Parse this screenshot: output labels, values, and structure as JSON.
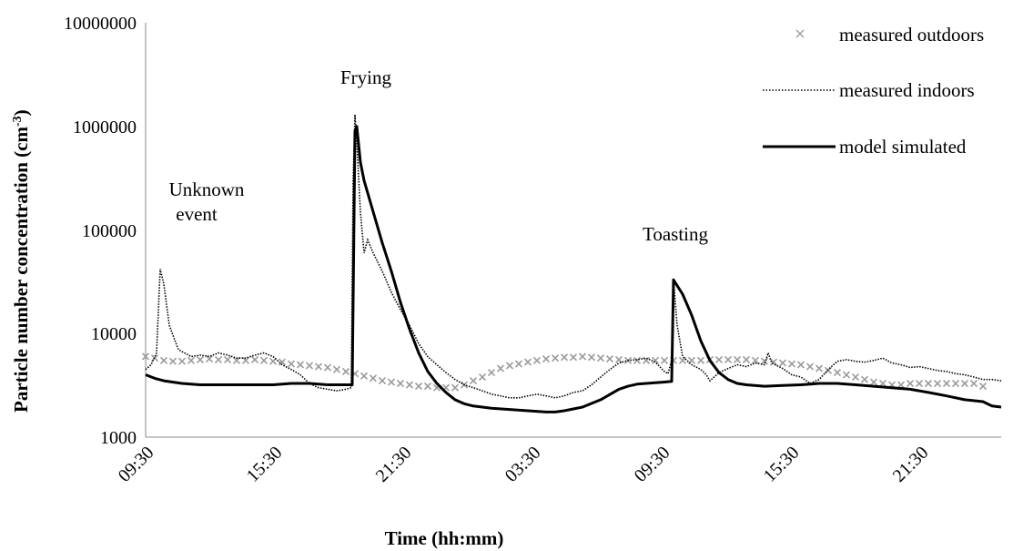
{
  "chart_data": {
    "type": "line",
    "xlabel": "Time (hh:mm)",
    "ylabel_main": "Particle number concentration (cm",
    "ylabel_sup": "-3",
    "ylabel_close": ")",
    "yscale": "log",
    "ylim": [
      1000,
      10000000
    ],
    "y_ticks": [
      "1000",
      "10000",
      "100000",
      "1000000",
      "10000000"
    ],
    "x_ticks": [
      "09:30",
      "15:30",
      "21:30",
      "03:30",
      "09:30",
      "15:30",
      "21:30"
    ],
    "legend_position": "top-right",
    "legend": [
      "measured outdoors",
      "measured indoors",
      "model simulated"
    ],
    "annotations": [
      {
        "text": "Frying"
      },
      {
        "text": "Unknown"
      },
      {
        "text": "event"
      },
      {
        "text": "Toasting"
      }
    ],
    "series": [
      {
        "name": "measured outdoors",
        "style": "x-markers",
        "color": "#9a9a9a",
        "points": [
          [
            0.0,
            6000
          ],
          [
            0.5,
            5800
          ],
          [
            1.0,
            5500
          ],
          [
            1.5,
            5400
          ],
          [
            2.0,
            5400
          ],
          [
            2.5,
            5500
          ],
          [
            3.0,
            5600
          ],
          [
            3.5,
            5700
          ],
          [
            4.0,
            5600
          ],
          [
            4.5,
            5600
          ],
          [
            5.0,
            5500
          ],
          [
            5.5,
            5500
          ],
          [
            6.0,
            5600
          ],
          [
            6.5,
            5500
          ],
          [
            7.0,
            5400
          ],
          [
            7.5,
            5300
          ],
          [
            8.0,
            5100
          ],
          [
            8.5,
            5000
          ],
          [
            9.0,
            4900
          ],
          [
            9.5,
            4800
          ],
          [
            10.0,
            4700
          ],
          [
            10.5,
            4500
          ],
          [
            11.0,
            4300
          ],
          [
            11.5,
            4100
          ],
          [
            12.0,
            3900
          ],
          [
            12.5,
            3700
          ],
          [
            13.0,
            3500
          ],
          [
            13.5,
            3400
          ],
          [
            14.0,
            3300
          ],
          [
            14.5,
            3200
          ],
          [
            15.0,
            3100
          ],
          [
            15.5,
            3100
          ],
          [
            16.0,
            3000
          ],
          [
            16.5,
            3000
          ],
          [
            17.0,
            3000
          ],
          [
            17.5,
            3200
          ],
          [
            18.0,
            3500
          ],
          [
            18.5,
            3800
          ],
          [
            19.0,
            4200
          ],
          [
            19.5,
            4600
          ],
          [
            20.0,
            4900
          ],
          [
            20.5,
            5100
          ],
          [
            21.0,
            5300
          ],
          [
            21.5,
            5500
          ],
          [
            22.0,
            5700
          ],
          [
            22.5,
            5800
          ],
          [
            23.0,
            5900
          ],
          [
            23.5,
            5900
          ],
          [
            24.0,
            6000
          ],
          [
            24.5,
            5900
          ],
          [
            25.0,
            5800
          ],
          [
            25.5,
            5700
          ],
          [
            26.0,
            5600
          ],
          [
            26.5,
            5500
          ],
          [
            27.0,
            5500
          ],
          [
            27.5,
            5500
          ],
          [
            28.0,
            5500
          ],
          [
            28.5,
            5500
          ],
          [
            29.0,
            5500
          ],
          [
            29.5,
            5500
          ],
          [
            30.0,
            5500
          ],
          [
            30.5,
            5500
          ],
          [
            31.0,
            5600
          ],
          [
            31.5,
            5600
          ],
          [
            32.0,
            5600
          ],
          [
            32.5,
            5600
          ],
          [
            33.0,
            5600
          ],
          [
            33.5,
            5500
          ],
          [
            34.0,
            5400
          ],
          [
            34.5,
            5300
          ],
          [
            35.0,
            5200
          ],
          [
            35.5,
            5100
          ],
          [
            36.0,
            5000
          ],
          [
            36.5,
            4800
          ],
          [
            37.0,
            4600
          ],
          [
            37.5,
            4400
          ],
          [
            38.0,
            4200
          ],
          [
            38.5,
            4000
          ],
          [
            39.0,
            3800
          ],
          [
            39.5,
            3600
          ],
          [
            40.0,
            3400
          ],
          [
            40.5,
            3300
          ],
          [
            41.0,
            3200
          ],
          [
            41.5,
            3200
          ],
          [
            42.0,
            3300
          ],
          [
            42.5,
            3300
          ],
          [
            43.0,
            3300
          ],
          [
            43.5,
            3300
          ],
          [
            44.0,
            3300
          ],
          [
            44.5,
            3300
          ],
          [
            45.0,
            3300
          ],
          [
            45.5,
            3300
          ],
          [
            46.0,
            3100
          ]
        ]
      },
      {
        "name": "measured indoors",
        "style": "dotted",
        "color": "#000000",
        "points": [
          [
            0.0,
            4500
          ],
          [
            0.3,
            5000
          ],
          [
            0.6,
            6500
          ],
          [
            0.8,
            42000
          ],
          [
            1.0,
            30000
          ],
          [
            1.3,
            12000
          ],
          [
            1.8,
            7000
          ],
          [
            2.5,
            6000
          ],
          [
            3.0,
            6200
          ],
          [
            3.5,
            6000
          ],
          [
            4.0,
            6500
          ],
          [
            4.5,
            6200
          ],
          [
            5.0,
            5800
          ],
          [
            5.5,
            5800
          ],
          [
            6.0,
            6200
          ],
          [
            6.5,
            6500
          ],
          [
            7.0,
            6000
          ],
          [
            7.5,
            5000
          ],
          [
            8.0,
            4500
          ],
          [
            8.5,
            4000
          ],
          [
            9.0,
            3300
          ],
          [
            9.5,
            3000
          ],
          [
            10.0,
            2900
          ],
          [
            10.5,
            2800
          ],
          [
            11.0,
            2900
          ],
          [
            11.3,
            3000
          ],
          [
            11.4,
            300000
          ],
          [
            11.5,
            1300000
          ],
          [
            11.6,
            700000
          ],
          [
            11.8,
            150000
          ],
          [
            12.0,
            60000
          ],
          [
            12.2,
            80000
          ],
          [
            12.5,
            60000
          ],
          [
            13.0,
            40000
          ],
          [
            13.5,
            25000
          ],
          [
            14.0,
            17000
          ],
          [
            14.5,
            12000
          ],
          [
            15.0,
            8000
          ],
          [
            15.5,
            6000
          ],
          [
            16.0,
            5000
          ],
          [
            16.5,
            4200
          ],
          [
            17.0,
            3600
          ],
          [
            17.5,
            3200
          ],
          [
            18.0,
            3000
          ],
          [
            18.5,
            2800
          ],
          [
            19.0,
            2600
          ],
          [
            19.5,
            2500
          ],
          [
            20.0,
            2400
          ],
          [
            20.5,
            2400
          ],
          [
            21.0,
            2500
          ],
          [
            21.5,
            2600
          ],
          [
            22.0,
            2500
          ],
          [
            22.5,
            2400
          ],
          [
            23.0,
            2500
          ],
          [
            23.5,
            2700
          ],
          [
            24.0,
            2800
          ],
          [
            24.5,
            3200
          ],
          [
            25.0,
            3800
          ],
          [
            25.5,
            4500
          ],
          [
            26.0,
            5200
          ],
          [
            26.5,
            5500
          ],
          [
            27.0,
            5600
          ],
          [
            27.5,
            5800
          ],
          [
            28.0,
            5300
          ],
          [
            28.5,
            4300
          ],
          [
            28.7,
            4100
          ],
          [
            28.9,
            5500
          ],
          [
            29.0,
            33000
          ],
          [
            29.2,
            12000
          ],
          [
            29.5,
            6000
          ],
          [
            30.0,
            5000
          ],
          [
            30.5,
            4500
          ],
          [
            30.8,
            4000
          ],
          [
            31.0,
            3500
          ],
          [
            31.5,
            4200
          ],
          [
            32.0,
            4600
          ],
          [
            32.5,
            5000
          ],
          [
            33.0,
            4800
          ],
          [
            33.5,
            5200
          ],
          [
            34.0,
            5000
          ],
          [
            34.2,
            6500
          ],
          [
            34.4,
            5200
          ],
          [
            35.0,
            4600
          ],
          [
            35.5,
            4000
          ],
          [
            36.0,
            3800
          ],
          [
            36.5,
            3300
          ],
          [
            37.0,
            3600
          ],
          [
            37.5,
            4500
          ],
          [
            38.0,
            5400
          ],
          [
            38.5,
            5600
          ],
          [
            39.0,
            5400
          ],
          [
            39.5,
            5300
          ],
          [
            40.0,
            5500
          ],
          [
            40.5,
            5800
          ],
          [
            41.0,
            5200
          ],
          [
            41.5,
            5000
          ],
          [
            42.0,
            4700
          ],
          [
            42.5,
            4800
          ],
          [
            43.0,
            4600
          ],
          [
            43.5,
            4400
          ],
          [
            44.0,
            4300
          ],
          [
            44.5,
            4100
          ],
          [
            45.0,
            4000
          ],
          [
            45.5,
            3800
          ],
          [
            46.0,
            3600
          ],
          [
            46.5,
            3600
          ],
          [
            47.0,
            3500
          ]
        ]
      },
      {
        "name": "model simulated",
        "style": "solid",
        "color": "#000000",
        "points": [
          [
            0.0,
            4000
          ],
          [
            0.5,
            3700
          ],
          [
            1.0,
            3500
          ],
          [
            2.0,
            3300
          ],
          [
            3.0,
            3200
          ],
          [
            4.0,
            3200
          ],
          [
            5.0,
            3200
          ],
          [
            6.0,
            3200
          ],
          [
            7.0,
            3200
          ],
          [
            8.0,
            3300
          ],
          [
            9.0,
            3300
          ],
          [
            10.0,
            3200
          ],
          [
            11.0,
            3200
          ],
          [
            11.35,
            3200
          ],
          [
            11.5,
            900000
          ],
          [
            11.6,
            1000000
          ],
          [
            11.8,
            450000
          ],
          [
            12.0,
            300000
          ],
          [
            12.5,
            150000
          ],
          [
            13.0,
            75000
          ],
          [
            13.5,
            40000
          ],
          [
            14.0,
            20000
          ],
          [
            14.5,
            11000
          ],
          [
            15.0,
            6500
          ],
          [
            15.5,
            4300
          ],
          [
            16.0,
            3300
          ],
          [
            16.5,
            2700
          ],
          [
            17.0,
            2300
          ],
          [
            17.5,
            2100
          ],
          [
            18.0,
            2000
          ],
          [
            19.0,
            1900
          ],
          [
            20.0,
            1850
          ],
          [
            21.0,
            1800
          ],
          [
            22.0,
            1750
          ],
          [
            22.5,
            1750
          ],
          [
            23.0,
            1800
          ],
          [
            24.0,
            1950
          ],
          [
            25.0,
            2300
          ],
          [
            26.0,
            2900
          ],
          [
            26.5,
            3100
          ],
          [
            27.0,
            3250
          ],
          [
            28.0,
            3350
          ],
          [
            28.5,
            3400
          ],
          [
            28.9,
            3450
          ],
          [
            29.0,
            33000
          ],
          [
            29.5,
            24000
          ],
          [
            30.0,
            15000
          ],
          [
            30.5,
            8500
          ],
          [
            31.0,
            5500
          ],
          [
            31.5,
            4200
          ],
          [
            32.0,
            3600
          ],
          [
            32.5,
            3300
          ],
          [
            33.0,
            3200
          ],
          [
            34.0,
            3100
          ],
          [
            35.0,
            3150
          ],
          [
            36.0,
            3200
          ],
          [
            37.0,
            3300
          ],
          [
            38.0,
            3300
          ],
          [
            39.0,
            3200
          ],
          [
            40.0,
            3100
          ],
          [
            41.0,
            3000
          ],
          [
            42.0,
            2900
          ],
          [
            43.0,
            2700
          ],
          [
            44.0,
            2500
          ],
          [
            45.0,
            2300
          ],
          [
            46.0,
            2200
          ],
          [
            46.5,
            2000
          ],
          [
            47.0,
            1950
          ]
        ]
      }
    ]
  }
}
